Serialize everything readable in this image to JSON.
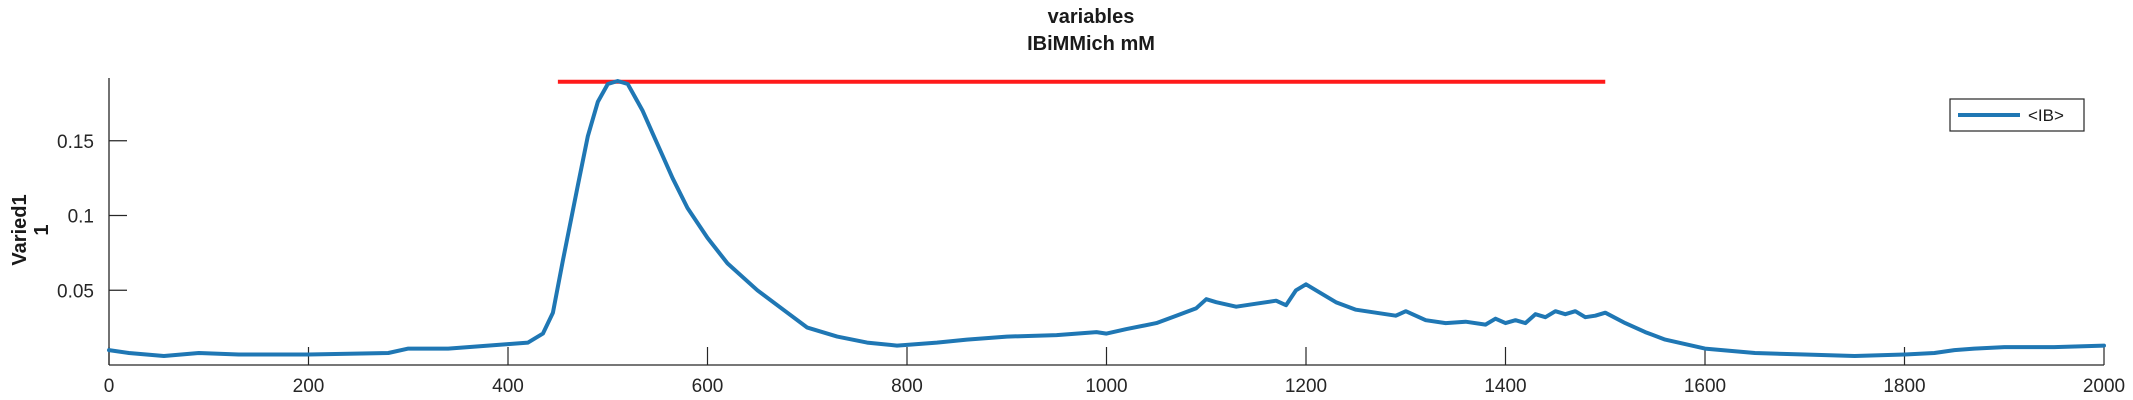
{
  "chart_data": {
    "type": "line",
    "title": [
      "variables",
      "IBiMMich mM"
    ],
    "xlabel": "",
    "ylabel": [
      "Varied1",
      "1"
    ],
    "xlim": [
      0,
      2000
    ],
    "ylim": [
      0.0,
      0.192
    ],
    "xticks": [
      0,
      200,
      400,
      600,
      800,
      1000,
      1200,
      1400,
      1600,
      1800,
      2000
    ],
    "yticks": [
      0.05,
      0.1,
      0.15
    ],
    "ytick_labels": [
      "0.05",
      "0.1",
      "0.15"
    ],
    "grid": false,
    "legend": {
      "position": "top-right",
      "entries": [
        "<IB>"
      ]
    },
    "colors": {
      "series": "#1f77b4",
      "reference": "#ff1a1a",
      "axis": "#262626"
    },
    "reference_line": {
      "x": [
        450,
        1500
      ],
      "y": 0.1895
    },
    "series": [
      {
        "name": "<IB>",
        "x": [
          0,
          20,
          55,
          90,
          130,
          200,
          280,
          300,
          340,
          380,
          400,
          420,
          435,
          445,
          455,
          470,
          480,
          490,
          500,
          510,
          520,
          525,
          535,
          545,
          555,
          565,
          580,
          600,
          620,
          650,
          680,
          700,
          730,
          760,
          790,
          830,
          860,
          900,
          950,
          990,
          1000,
          1020,
          1050,
          1070,
          1090,
          1100,
          1110,
          1130,
          1150,
          1170,
          1180,
          1190,
          1200,
          1210,
          1230,
          1250,
          1270,
          1290,
          1300,
          1320,
          1340,
          1360,
          1380,
          1390,
          1400,
          1410,
          1420,
          1430,
          1440,
          1450,
          1460,
          1470,
          1480,
          1490,
          1500,
          1520,
          1540,
          1560,
          1600,
          1650,
          1700,
          1750,
          1800,
          1830,
          1850,
          1870,
          1900,
          1950,
          2000
        ],
        "y": [
          0.01,
          0.008,
          0.006,
          0.008,
          0.007,
          0.007,
          0.008,
          0.011,
          0.011,
          0.013,
          0.014,
          0.015,
          0.021,
          0.035,
          0.07,
          0.12,
          0.153,
          0.176,
          0.188,
          0.19,
          0.188,
          0.182,
          0.17,
          0.155,
          0.14,
          0.125,
          0.105,
          0.085,
          0.068,
          0.05,
          0.035,
          0.025,
          0.019,
          0.015,
          0.013,
          0.015,
          0.017,
          0.019,
          0.02,
          0.022,
          0.021,
          0.024,
          0.028,
          0.033,
          0.038,
          0.044,
          0.042,
          0.039,
          0.041,
          0.043,
          0.04,
          0.05,
          0.054,
          0.05,
          0.042,
          0.037,
          0.035,
          0.033,
          0.036,
          0.03,
          0.028,
          0.029,
          0.027,
          0.031,
          0.028,
          0.03,
          0.028,
          0.034,
          0.032,
          0.036,
          0.034,
          0.036,
          0.032,
          0.033,
          0.035,
          0.028,
          0.022,
          0.017,
          0.011,
          0.008,
          0.007,
          0.006,
          0.007,
          0.008,
          0.01,
          0.011,
          0.012,
          0.012,
          0.013
        ]
      }
    ]
  }
}
